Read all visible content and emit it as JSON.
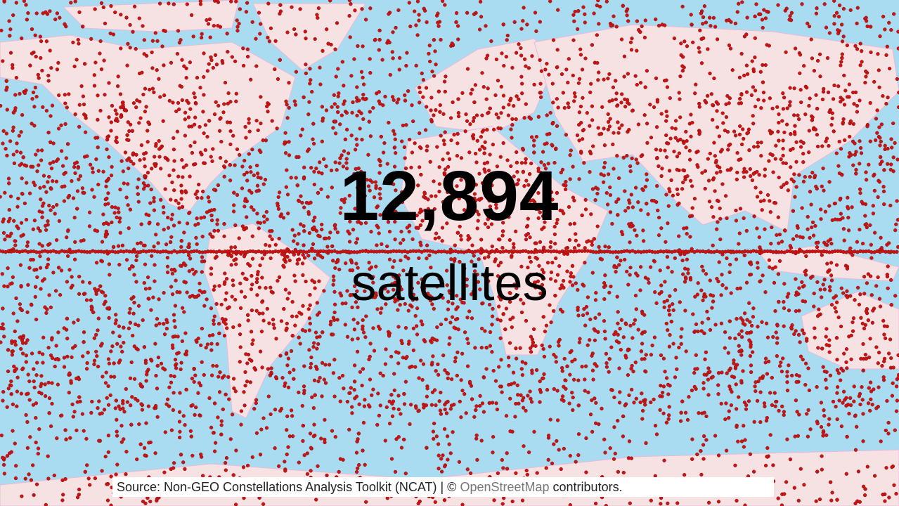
{
  "headline": {
    "count": "12,894",
    "label": "satellites"
  },
  "source": {
    "text": "Source: Non-GEO Constellations Analysis Toolkit (NCAT) | ©",
    "link": "OpenStreetMap",
    "suffix": "contributors."
  }
}
